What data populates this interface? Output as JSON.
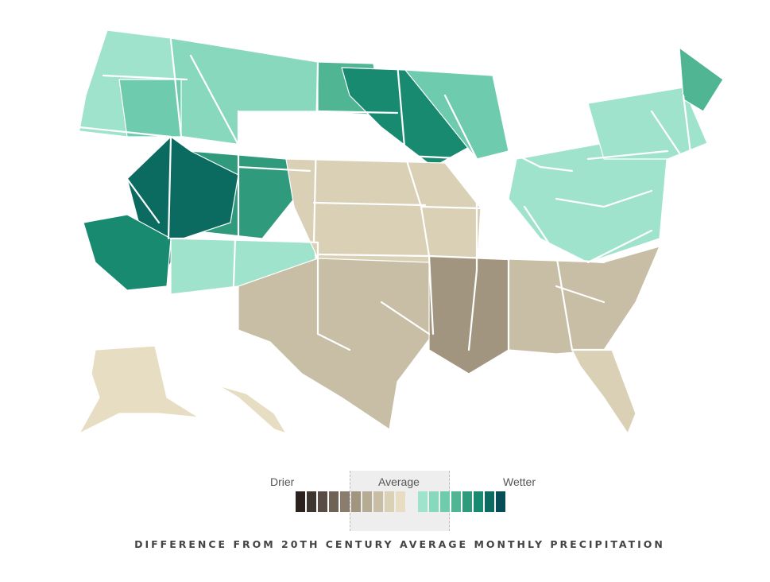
{
  "map": {
    "regions": [
      {
        "name": "pacific-northwest",
        "level": 1
      },
      {
        "name": "northern-rockies",
        "level": 2
      },
      {
        "name": "oregon-east",
        "level": 3
      },
      {
        "name": "northern-plains-dakotas",
        "level": 4
      },
      {
        "name": "upper-midwest-minnesota",
        "level": 6
      },
      {
        "name": "wisconsin-michigan-up",
        "level": 3
      },
      {
        "name": "wyoming-colorado",
        "level": 5
      },
      {
        "name": "nevada-utah",
        "level": 7
      },
      {
        "name": "southern-california",
        "level": 6
      },
      {
        "name": "arizona-new-mexico",
        "level": 1
      },
      {
        "name": "central-plains",
        "level": -2
      },
      {
        "name": "texas",
        "level": -3
      },
      {
        "name": "lower-mississippi-valley",
        "level": -5
      },
      {
        "name": "southeast",
        "level": -3
      },
      {
        "name": "appalachia",
        "level": 1
      },
      {
        "name": "northeast",
        "level": 1
      },
      {
        "name": "maine",
        "level": 4
      },
      {
        "name": "florida",
        "level": -2
      },
      {
        "name": "alaska",
        "level": -1
      },
      {
        "name": "hawaii",
        "level": -1
      }
    ]
  },
  "legend": {
    "drier_label": "Drier",
    "average_label": "Average",
    "wetter_label": "Wetter",
    "dry_colors": [
      "#2b211d",
      "#403630",
      "#584c44",
      "#6f6356",
      "#8a7d6d",
      "#a1957f",
      "#b6ab93",
      "#c8be a5",
      "#d9d0b5",
      "#e6ddc2"
    ],
    "wet_colors": [
      "#9fe3cd",
      "#88d8bd",
      "#6fcbad",
      "#4fb593",
      "#2f9b7c",
      "#178a6f",
      "#0b6b60",
      "#064d57"
    ]
  },
  "caption": "DIFFERENCE FROM 20TH CENTURY AVERAGE MONTHLY PRECIPITATION"
}
